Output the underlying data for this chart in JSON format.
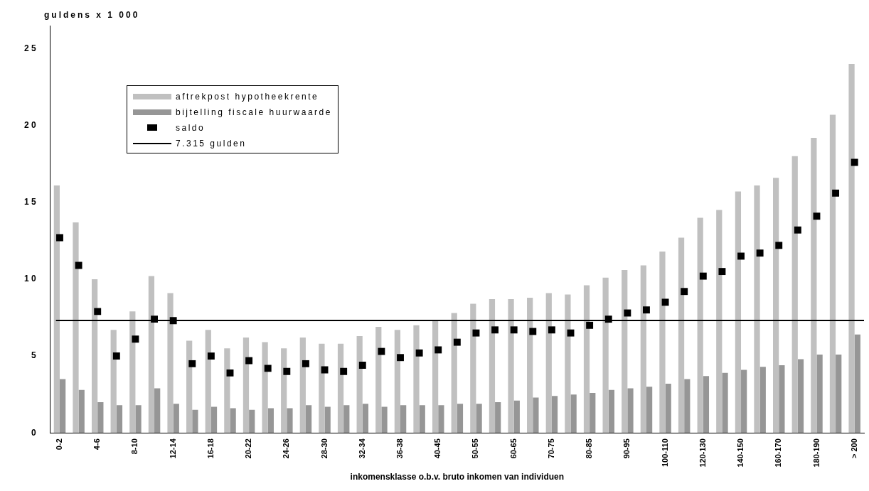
{
  "chart_data": {
    "type": "bar",
    "xlabel": "inkomensklasse o.b.v. bruto inkomen van individuen",
    "ylabel": "guldens x 1 000",
    "categories": [
      "0-2",
      null,
      "4-6",
      null,
      "8-10",
      null,
      "12-14",
      null,
      "16-18",
      null,
      "20-22",
      null,
      "24-26",
      null,
      "28-30",
      null,
      "32-34",
      null,
      "36-38",
      null,
      "40-45",
      null,
      "50-55",
      null,
      "60-65",
      null,
      "70-75",
      null,
      "80-85",
      null,
      "90-95",
      null,
      "100-110",
      null,
      "120-130",
      null,
      "140-150",
      null,
      "160-170",
      null,
      "180-190",
      null,
      "> 200"
    ],
    "series": [
      {
        "name": "aftrekpost hypotheekrente",
        "color": "#c0c0c0",
        "values": [
          16.1,
          13.7,
          10.0,
          6.7,
          7.9,
          10.2,
          9.1,
          6.0,
          6.7,
          5.5,
          6.2,
          5.9,
          5.5,
          6.2,
          5.8,
          5.8,
          6.3,
          6.9,
          6.7,
          7.0,
          7.3,
          7.8,
          8.4,
          8.7,
          8.7,
          8.8,
          9.1,
          9.0,
          9.6,
          10.1,
          10.6,
          10.9,
          11.8,
          12.7,
          14.0,
          14.5,
          15.7,
          16.1,
          16.6,
          18.0,
          19.2,
          20.7,
          24.0
        ]
      },
      {
        "name": "bijtelling fiscale huurwaarde",
        "color": "#969696",
        "values": [
          3.5,
          2.8,
          2.0,
          1.8,
          1.8,
          2.9,
          1.9,
          1.5,
          1.7,
          1.6,
          1.5,
          1.6,
          1.6,
          1.8,
          1.7,
          1.8,
          1.9,
          1.7,
          1.8,
          1.8,
          1.8,
          1.9,
          1.9,
          2.0,
          2.1,
          2.3,
          2.4,
          2.5,
          2.6,
          2.8,
          2.9,
          3.0,
          3.2,
          3.5,
          3.7,
          3.9,
          4.1,
          4.3,
          4.4,
          4.8,
          5.1,
          5.1,
          6.4
        ]
      },
      {
        "name": "saldo",
        "type": "scatter",
        "marker": "square",
        "color": "#000000",
        "values": [
          12.7,
          10.9,
          7.9,
          5.0,
          6.1,
          7.4,
          7.3,
          4.5,
          5.0,
          3.9,
          4.7,
          4.2,
          4.0,
          4.5,
          4.1,
          4.0,
          4.4,
          5.3,
          4.9,
          5.2,
          5.4,
          5.9,
          6.5,
          6.7,
          6.7,
          6.6,
          6.7,
          6.5,
          7.0,
          7.4,
          7.8,
          8.0,
          8.5,
          9.2,
          10.2,
          10.5,
          11.5,
          11.7,
          12.2,
          13.2,
          14.1,
          15.6,
          17.6
        ]
      }
    ],
    "ylim": [
      0,
      26.5
    ],
    "yticks": [
      0,
      5,
      10,
      15,
      20,
      25
    ],
    "grid": false,
    "legend": "top left",
    "ref_lines": [
      {
        "axis": "y",
        "value": 7.315,
        "label": "7.315 gulden",
        "color": "#000000"
      }
    ]
  }
}
